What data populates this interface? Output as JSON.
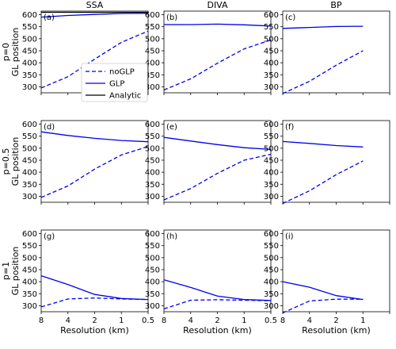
{
  "chart_data": {
    "type": "line",
    "columns": [
      "SSA",
      "DIVA",
      "BP"
    ],
    "rows": [
      "p=0",
      "p=0.5",
      "p=1"
    ],
    "ylabel": "GL position",
    "xlabel": "Resolution (km)",
    "ylim": [
      275,
      615
    ],
    "yticks": [
      300,
      350,
      400,
      450,
      500,
      550,
      600
    ],
    "xscale": "log2-reversed",
    "xticks": [
      8,
      4,
      2,
      1,
      0.5
    ],
    "xlim": [
      8,
      0.5
    ],
    "colors": {
      "noGLP": "#0000ee",
      "GLP": "#0000ee",
      "Analytic": "#000000"
    },
    "legend": {
      "placement": "lower-right",
      "entries": [
        {
          "name": "noGLP",
          "style": "dashed",
          "color": "#0000ee"
        },
        {
          "name": "GLP",
          "style": "solid",
          "color": "#0000ee"
        },
        {
          "name": "Analytic",
          "style": "solid",
          "color": "#000000"
        }
      ]
    },
    "panels": [
      {
        "label": "(a)",
        "row": 0,
        "col": 0,
        "xticks_shown": false,
        "analytic": [
          610,
          610
        ],
        "series": [
          {
            "name": "noGLP",
            "x": [
              8,
              4,
              2,
              1,
              0.5
            ],
            "y": [
              295,
              342,
              415,
              485,
              532
            ]
          },
          {
            "name": "GLP",
            "x": [
              8,
              4,
              2,
              1,
              0.5
            ],
            "y": [
              590,
              597,
              601,
              605,
              606
            ]
          }
        ]
      },
      {
        "label": "(b)",
        "row": 0,
        "col": 1,
        "xticks_shown": false,
        "series": [
          {
            "name": "noGLP",
            "x": [
              8,
              4,
              2,
              1,
              0.5
            ],
            "y": [
              287,
              333,
              398,
              458,
              495
            ]
          },
          {
            "name": "GLP",
            "x": [
              8,
              4,
              2,
              1,
              0.5
            ],
            "y": [
              559,
              559,
              561,
              558,
              553
            ]
          }
        ]
      },
      {
        "label": "(c)",
        "row": 0,
        "col": 2,
        "xticks_shown": false,
        "series": [
          {
            "name": "noGLP",
            "x": [
              8,
              4,
              2,
              1
            ],
            "y": [
              272,
              323,
              390,
              450
            ]
          },
          {
            "name": "GLP",
            "x": [
              8,
              4,
              2,
              1
            ],
            "y": [
              543,
              547,
              551,
              552
            ]
          }
        ]
      },
      {
        "label": "(d)",
        "row": 1,
        "col": 0,
        "xticks_shown": false,
        "series": [
          {
            "name": "noGLP",
            "x": [
              8,
              4,
              2,
              1,
              0.5
            ],
            "y": [
              295,
              343,
              413,
              472,
              507
            ]
          },
          {
            "name": "GLP",
            "x": [
              8,
              4,
              2,
              1,
              0.5
            ],
            "y": [
              568,
              553,
              541,
              532,
              527
            ]
          }
        ]
      },
      {
        "label": "(e)",
        "row": 1,
        "col": 1,
        "xticks_shown": false,
        "series": [
          {
            "name": "noGLP",
            "x": [
              8,
              4,
              2,
              1,
              0.5
            ],
            "y": [
              285,
              332,
              395,
              450,
              475
            ]
          },
          {
            "name": "GLP",
            "x": [
              8,
              4,
              2,
              1,
              0.5
            ],
            "y": [
              545,
              530,
              515,
              502,
              495
            ]
          }
        ]
      },
      {
        "label": "(f)",
        "row": 1,
        "col": 2,
        "xticks_shown": false,
        "series": [
          {
            "name": "noGLP",
            "x": [
              8,
              4,
              2,
              1
            ],
            "y": [
              270,
              323,
              390,
              447
            ]
          },
          {
            "name": "GLP",
            "x": [
              8,
              4,
              2,
              1
            ],
            "y": [
              528,
              520,
              511,
              505
            ]
          }
        ]
      },
      {
        "label": "(g)",
        "row": 2,
        "col": 0,
        "xticks_shown": true,
        "series": [
          {
            "name": "noGLP",
            "x": [
              8,
              4,
              2,
              1,
              0.5
            ],
            "y": [
              295,
              328,
              332,
              328,
              326
            ]
          },
          {
            "name": "GLP",
            "x": [
              8,
              4,
              2,
              1,
              0.5
            ],
            "y": [
              425,
              388,
              347,
              330,
              326
            ]
          }
        ]
      },
      {
        "label": "(h)",
        "row": 2,
        "col": 1,
        "xticks_shown": true,
        "series": [
          {
            "name": "noGLP",
            "x": [
              8,
              4,
              2,
              1,
              0.5
            ],
            "y": [
              287,
              323,
              325,
              323,
              321
            ]
          },
          {
            "name": "GLP",
            "x": [
              8,
              4,
              2,
              1,
              0.5
            ],
            "y": [
              408,
              376,
              340,
              326,
              322
            ]
          }
        ]
      },
      {
        "label": "(i)",
        "row": 2,
        "col": 2,
        "xticks_shown": true,
        "series": [
          {
            "name": "noGLP",
            "x": [
              8,
              4,
              2,
              1
            ],
            "y": [
              270,
              320,
              327,
              327
            ]
          },
          {
            "name": "GLP",
            "x": [
              8,
              4,
              2,
              1
            ],
            "y": [
              400,
              377,
              342,
              326
            ]
          }
        ]
      }
    ]
  }
}
